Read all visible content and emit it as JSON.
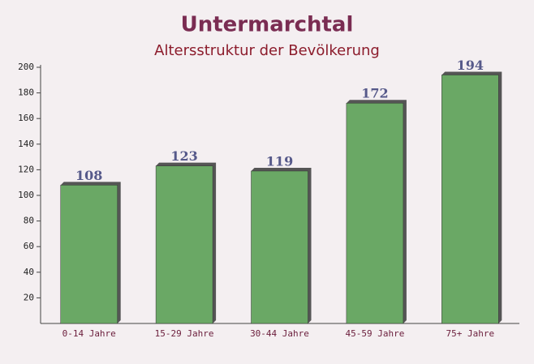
{
  "chart_data": {
    "type": "bar",
    "title": "Untermarchtal",
    "subtitle": "Altersstruktur der Bevölkerung",
    "categories": [
      "0-14 Jahre",
      "15-29 Jahre",
      "30-44 Jahre",
      "45-59 Jahre",
      "75+ Jahre"
    ],
    "values": [
      108,
      123,
      119,
      172,
      194
    ],
    "color": "#6aa865",
    "ylim": [
      0,
      200
    ],
    "yticks": [
      20,
      40,
      60,
      80,
      100,
      120,
      140,
      160,
      180,
      200
    ]
  }
}
